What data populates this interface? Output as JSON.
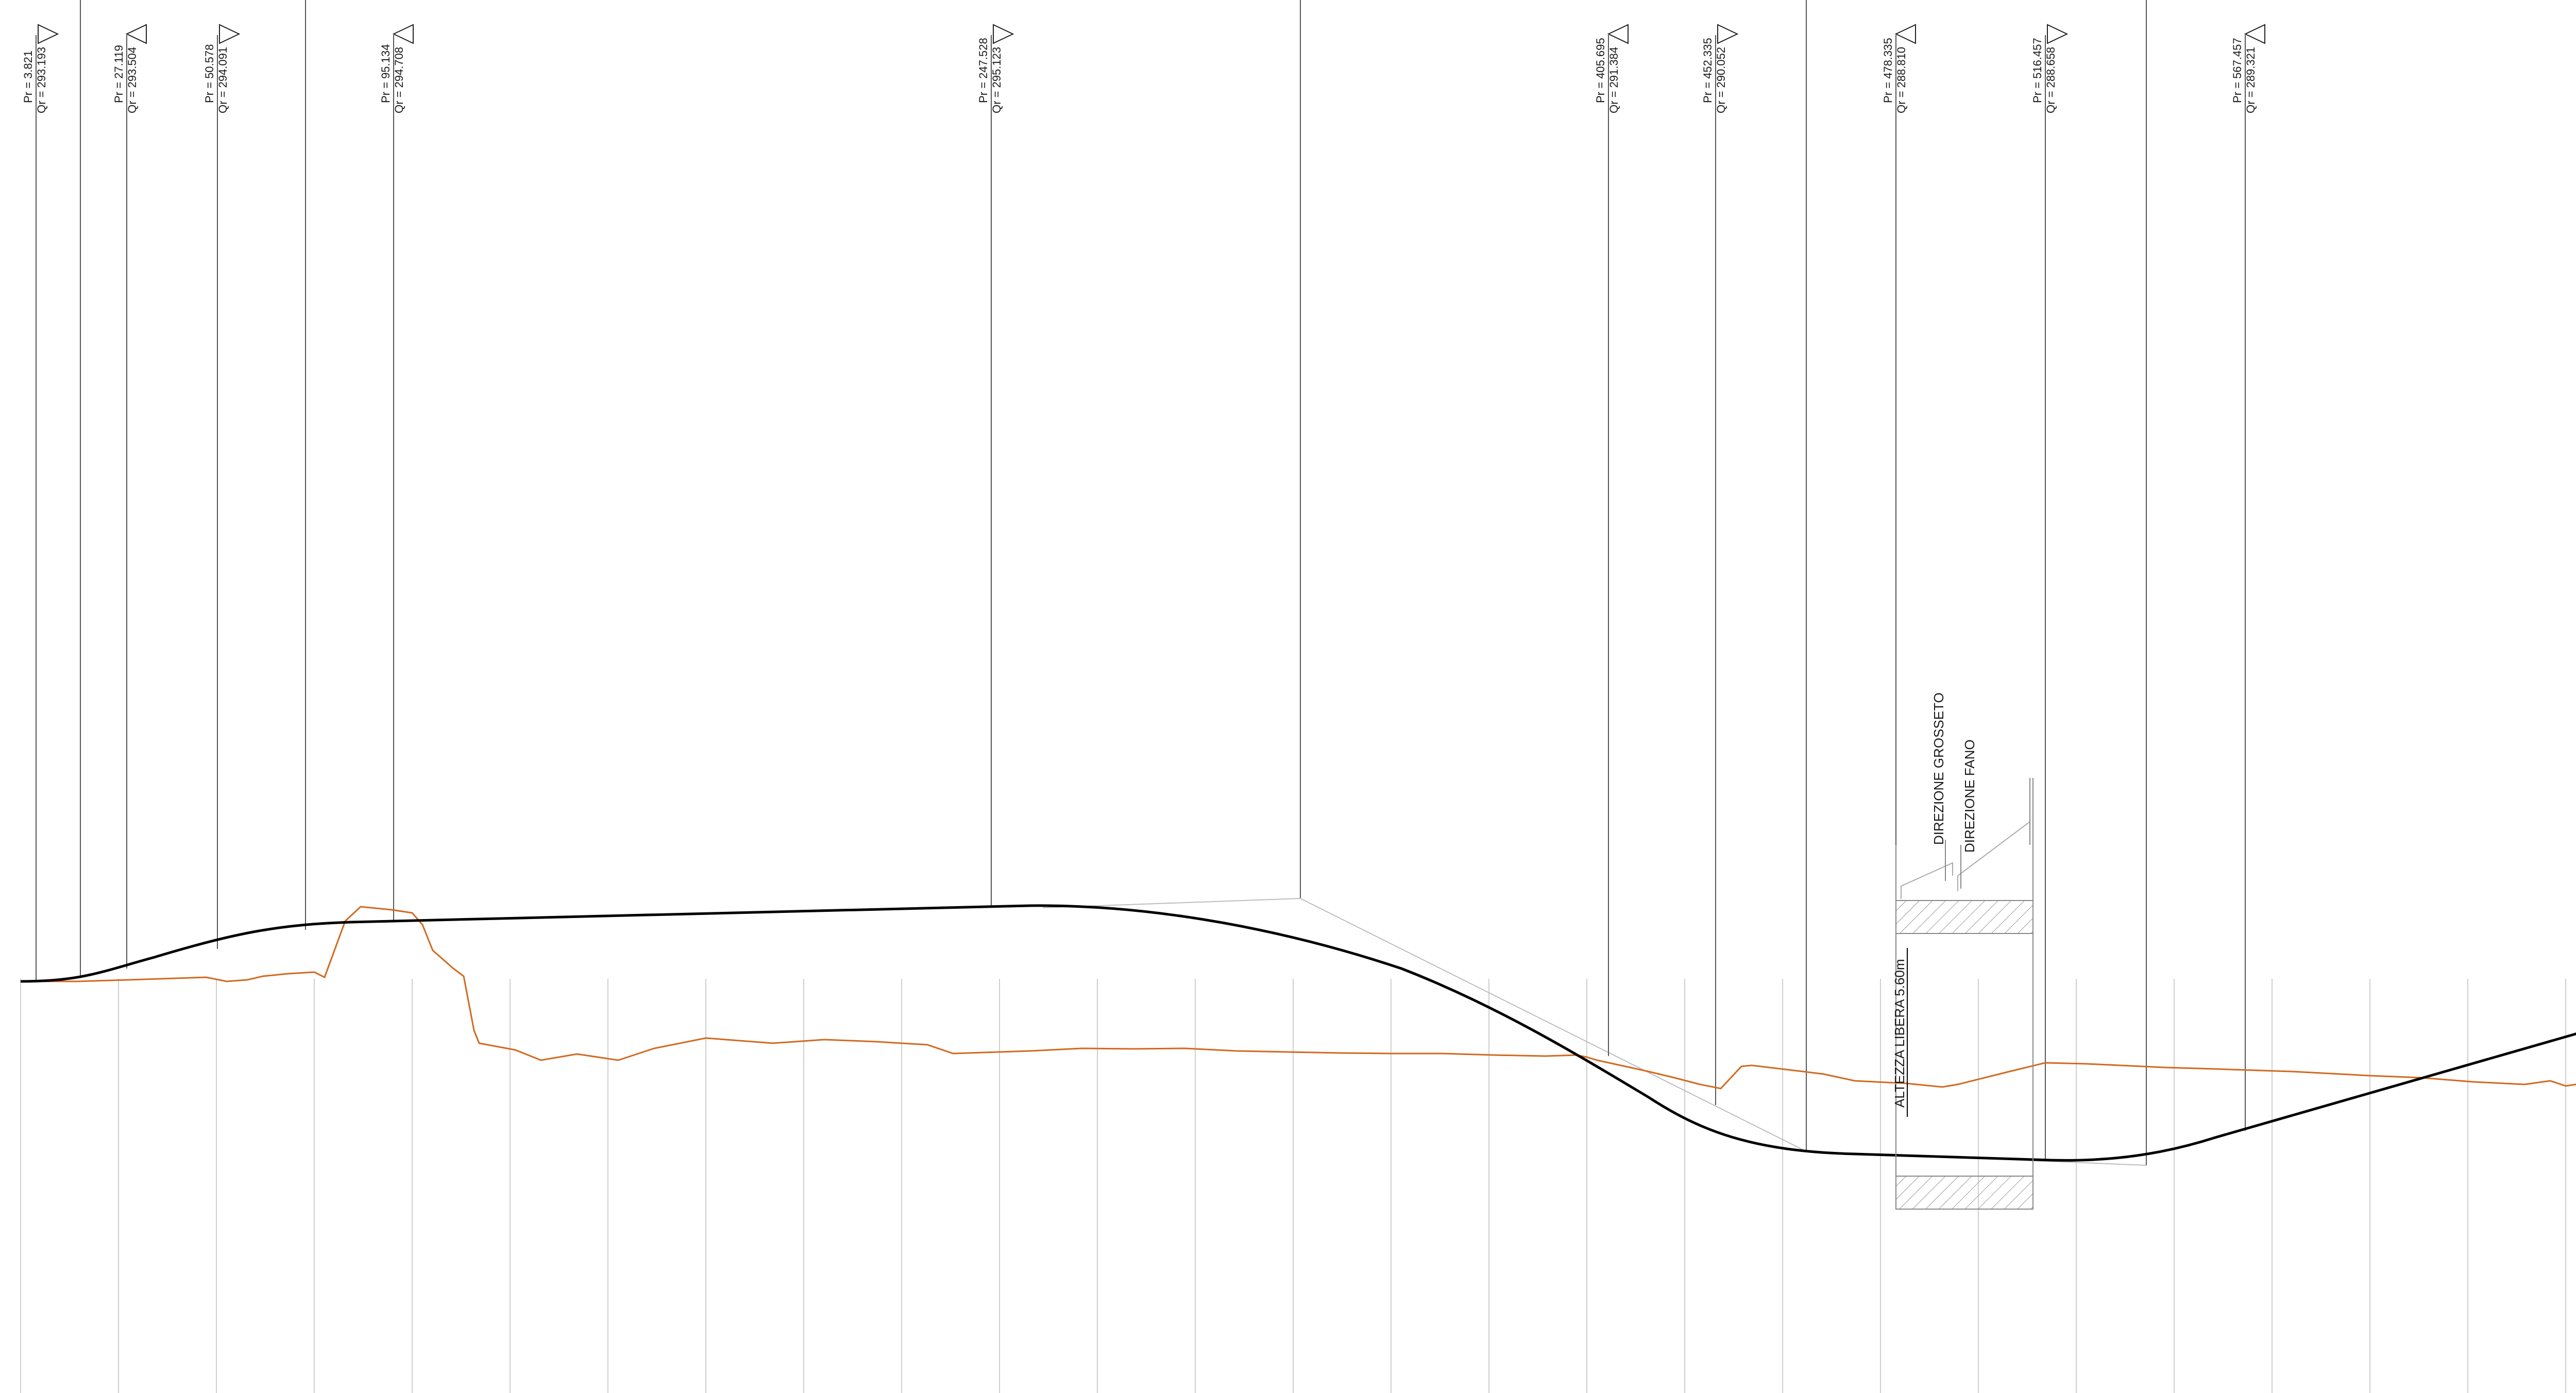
{
  "colors": {
    "background": "#ffffff",
    "design_profile": "#000000",
    "terrain_profile": "#d2691e",
    "leader_lines": "#555555",
    "grid_lines": "#cfcfcf",
    "hatch": "#9a9a9a"
  },
  "stations": [
    {
      "pr": "Pr = 3.821",
      "qr": "Qr = 293.193",
      "marker": "triangle-right-icon"
    },
    {
      "pr": "Pr = 27.119",
      "qr": "Qr = 293.504",
      "marker": "triangle-left-icon"
    },
    {
      "pr": "Pr = 50.578",
      "qr": "Qr = 294.091",
      "marker": "triangle-right-icon"
    },
    {
      "pr": "Pr = 95.134",
      "qr": "Qr = 294.708",
      "marker": "triangle-left-icon"
    },
    {
      "pr": "Pr = 247.528",
      "qr": "Qr = 295.123",
      "marker": "triangle-right-icon"
    },
    {
      "pr": "Pr = 405.695",
      "qr": "Qr = 291.384",
      "marker": "triangle-left-icon"
    },
    {
      "pr": "Pr = 452.335",
      "qr": "Qr = 290.052",
      "marker": "triangle-right-icon"
    },
    {
      "pr": "Pr = 478.335",
      "qr": "Qr = 288.810",
      "marker": "triangle-left-icon"
    },
    {
      "pr": "Pr = 516.457",
      "qr": "Qr = 288.658",
      "marker": "triangle-right-icon"
    },
    {
      "pr": "Pr = 567.457",
      "qr": "Qr = 289.321",
      "marker": "triangle-left-icon"
    }
  ],
  "structure": {
    "direction_1": "DIREZIONE GROSSETO",
    "direction_2": "DIREZIONE FANO",
    "clearance": "ALTEZZA LIBERA 5.60m"
  }
}
